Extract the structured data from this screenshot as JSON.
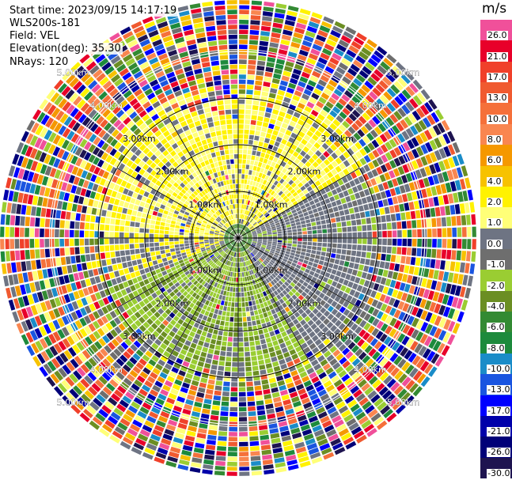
{
  "info": {
    "start_time": "Start time: 2023/09/15 14:17:19",
    "instrument": "WLS200s-181",
    "field": "Field: VEL",
    "elevation": "Elevation(deg): 35.30",
    "nrays": "NRays: 120"
  },
  "colorbar": {
    "unit": "m/s",
    "levels": [
      {
        "label": "26.0",
        "color": "#f0509a"
      },
      {
        "label": "21.0",
        "color": "#e8002a"
      },
      {
        "label": "17.0",
        "color": "#f0402a"
      },
      {
        "label": "13.0",
        "color": "#f05a30"
      },
      {
        "label": "10.0",
        "color": "#f5703a"
      },
      {
        "label": "8.0",
        "color": "#f98650"
      },
      {
        "label": "6.0",
        "color": "#f59800"
      },
      {
        "label": "4.0",
        "color": "#f7c200"
      },
      {
        "label": "2.0",
        "color": "#fff200"
      },
      {
        "label": "1.0",
        "color": "#ffff78"
      },
      {
        "label": "0.0",
        "color": "#6e7483"
      },
      {
        "label": "-1.0",
        "color": "#6e6e6e"
      },
      {
        "label": "-2.0",
        "color": "#9acd32"
      },
      {
        "label": "-4.0",
        "color": "#6b8e23"
      },
      {
        "label": "-6.0",
        "color": "#338a33"
      },
      {
        "label": "-8.0",
        "color": "#1d8a3c"
      },
      {
        "label": "-10.0",
        "color": "#1a8cc8"
      },
      {
        "label": "-13.0",
        "color": "#1a55e0"
      },
      {
        "label": "-17.0",
        "color": "#0000ff"
      },
      {
        "label": "-21.0",
        "color": "#0000aa"
      },
      {
        "label": "-26.0",
        "color": "#000078"
      },
      {
        "label": "-30.0",
        "color": "#1e1450"
      }
    ]
  },
  "range_labels": [
    "1.00km",
    "2.00km",
    "3.00km",
    "4.00km",
    "5.00km"
  ],
  "chart_data": {
    "type": "heatmap",
    "subtype": "ppi-polar",
    "field": "VEL",
    "units": "m/s",
    "elevation_deg": 35.3,
    "n_rays": 120,
    "range_rings_km": [
      1,
      2,
      3,
      4,
      5
    ],
    "vmin": -30.0,
    "vmax": 26.0,
    "regions": [
      {
        "range_km": [
          0.0,
          0.35
        ],
        "description": "near-zero, mixed",
        "value": 0.0
      },
      {
        "range_km": [
          0.35,
          3.3
        ],
        "azimuth_deg": [
          270,
          60
        ],
        "value": 1.5
      },
      {
        "range_km": [
          0.35,
          3.3
        ],
        "azimuth_deg": [
          60,
          150
        ],
        "value": -0.5
      },
      {
        "range_km": [
          0.35,
          3.3
        ],
        "azimuth_deg": [
          150,
          250
        ],
        "value": -2.0
      },
      {
        "range_km": [
          3.3,
          5.1
        ],
        "description": "noise (random values)",
        "value": null
      }
    ]
  }
}
